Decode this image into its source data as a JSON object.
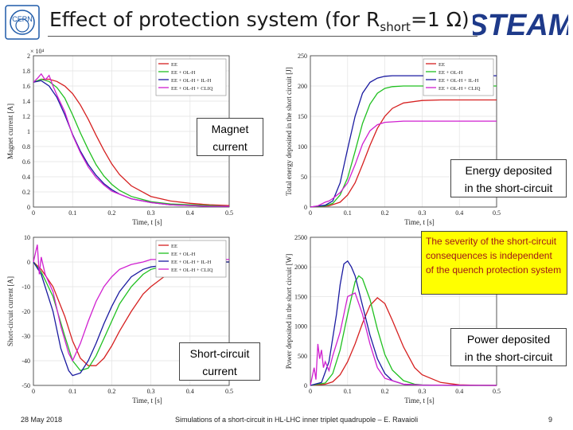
{
  "header": {
    "title_main": "Effect of protection system (for R",
    "title_sub": "short",
    "title_end": "=1 Ω)",
    "logo_left": "CERN",
    "logo_right": "STEAM"
  },
  "annotations": {
    "magnet_current": [
      "Magnet",
      "current"
    ],
    "energy_deposited": [
      "Energy deposited",
      "in the short-circuit"
    ],
    "severity": "The severity of the short-circuit consequences is independent of the quench protection system",
    "short_circuit_current": [
      "Short-circuit",
      "current"
    ],
    "power_deposited": [
      "Power deposited",
      "in the short-circuit"
    ]
  },
  "footer": {
    "date": "28 May 2018",
    "center": "Simulations of a short-circuit in HL-LHC inner triplet quadrupole – E. Ravaioli",
    "page": "9"
  },
  "colors": {
    "EE": "#d62020",
    "EE_OLH": "#20c020",
    "EE_OLH_ILH": "#1a1aa0",
    "EE_OLH_CLIQ": "#d020d0"
  },
  "chart_data": [
    {
      "id": "magnet-current",
      "type": "line",
      "ylabel": "Magnet current [A]",
      "xlabel": "Time, t [s]",
      "multiplier": "× 10⁴",
      "xlim": [
        0,
        0.5
      ],
      "ylim": [
        0,
        2
      ],
      "xticks": [
        "0",
        "0.1",
        "0.2",
        "0.3",
        "0.4",
        "0.5"
      ],
      "yticks": [
        "0",
        "0.2",
        "0.4",
        "0.6",
        "0.8",
        "1",
        "1.2",
        "1.4",
        "1.6",
        "1.8",
        "2"
      ],
      "legend": "top-right",
      "series": [
        {
          "name": "EE",
          "color": "#d62020",
          "x": [
            0,
            0.02,
            0.04,
            0.06,
            0.08,
            0.1,
            0.12,
            0.14,
            0.16,
            0.18,
            0.2,
            0.22,
            0.25,
            0.3,
            0.35,
            0.4,
            0.45,
            0.5
          ],
          "y": [
            1.65,
            1.69,
            1.69,
            1.66,
            1.6,
            1.5,
            1.35,
            1.16,
            0.95,
            0.75,
            0.57,
            0.43,
            0.28,
            0.14,
            0.08,
            0.05,
            0.03,
            0.02
          ]
        },
        {
          "name": "EE + OL-H",
          "color": "#20c020",
          "x": [
            0,
            0.02,
            0.04,
            0.06,
            0.08,
            0.1,
            0.12,
            0.14,
            0.16,
            0.18,
            0.2,
            0.22,
            0.25,
            0.3,
            0.35,
            0.4,
            0.45,
            0.5
          ],
          "y": [
            1.65,
            1.69,
            1.66,
            1.58,
            1.44,
            1.22,
            0.98,
            0.76,
            0.56,
            0.41,
            0.3,
            0.22,
            0.14,
            0.07,
            0.04,
            0.03,
            0.02,
            0.01
          ]
        },
        {
          "name": "EE + OL-H + IL-H",
          "color": "#1a1aa0",
          "x": [
            0,
            0.02,
            0.04,
            0.06,
            0.08,
            0.1,
            0.12,
            0.14,
            0.16,
            0.18,
            0.2,
            0.22,
            0.25,
            0.3,
            0.35,
            0.4,
            0.45,
            0.5
          ],
          "y": [
            1.65,
            1.67,
            1.6,
            1.45,
            1.22,
            0.96,
            0.74,
            0.56,
            0.42,
            0.31,
            0.23,
            0.17,
            0.11,
            0.06,
            0.03,
            0.02,
            0.01,
            0.01
          ]
        },
        {
          "name": "EE + OL-H + CLIQ",
          "color": "#d020d0",
          "x": [
            0,
            0.01,
            0.02,
            0.03,
            0.04,
            0.05,
            0.06,
            0.08,
            0.1,
            0.12,
            0.14,
            0.16,
            0.18,
            0.2,
            0.25,
            0.3,
            0.35,
            0.4,
            0.45,
            0.5
          ],
          "y": [
            1.65,
            1.7,
            1.76,
            1.68,
            1.74,
            1.6,
            1.48,
            1.26,
            0.95,
            0.72,
            0.53,
            0.39,
            0.29,
            0.21,
            0.11,
            0.06,
            0.03,
            0.02,
            0.01,
            0.01
          ]
        }
      ]
    },
    {
      "id": "energy-deposited",
      "type": "line",
      "ylabel": "Total energy deposited in the short circuit [J]",
      "xlabel": "Time, t [s]",
      "xlim": [
        0,
        0.5
      ],
      "ylim": [
        0,
        250
      ],
      "xticks": [
        "0",
        "0.1",
        "0.2",
        "0.3",
        "0.4",
        "0.5"
      ],
      "yticks": [
        "0",
        "50",
        "100",
        "150",
        "200",
        "250"
      ],
      "legend": "top-right",
      "series": [
        {
          "name": "EE",
          "color": "#d62020",
          "x": [
            0,
            0.05,
            0.08,
            0.1,
            0.12,
            0.14,
            0.16,
            0.18,
            0.2,
            0.22,
            0.25,
            0.3,
            0.35,
            0.4,
            0.45,
            0.5
          ],
          "y": [
            0,
            2,
            8,
            20,
            40,
            70,
            102,
            130,
            150,
            163,
            172,
            176,
            177,
            177,
            177,
            177
          ]
        },
        {
          "name": "EE + OL-H",
          "color": "#20c020",
          "x": [
            0,
            0.04,
            0.06,
            0.08,
            0.1,
            0.12,
            0.14,
            0.16,
            0.18,
            0.2,
            0.22,
            0.25,
            0.3,
            0.35,
            0.4,
            0.45,
            0.5
          ],
          "y": [
            0,
            2,
            6,
            20,
            48,
            92,
            138,
            170,
            188,
            196,
            199,
            200,
            200,
            200,
            200,
            200,
            200
          ]
        },
        {
          "name": "EE + OL-H + IL-H",
          "color": "#1a1aa0",
          "x": [
            0,
            0.04,
            0.06,
            0.08,
            0.1,
            0.12,
            0.14,
            0.16,
            0.18,
            0.2,
            0.22,
            0.25,
            0.3,
            0.35,
            0.4,
            0.45,
            0.5
          ],
          "y": [
            0,
            3,
            10,
            40,
            96,
            150,
            188,
            206,
            213,
            216,
            217,
            217,
            217,
            217,
            217,
            217,
            217
          ]
        },
        {
          "name": "EE + OL-H + CLIQ",
          "color": "#d020d0",
          "x": [
            0,
            0.02,
            0.03,
            0.04,
            0.05,
            0.06,
            0.08,
            0.1,
            0.12,
            0.14,
            0.16,
            0.18,
            0.2,
            0.25,
            0.3,
            0.35,
            0.4,
            0.45,
            0.5
          ],
          "y": [
            0,
            2,
            5,
            8,
            10,
            14,
            24,
            40,
            70,
            104,
            126,
            136,
            140,
            142,
            142,
            142,
            142,
            142,
            142
          ]
        }
      ]
    },
    {
      "id": "short-circuit-current",
      "type": "line",
      "ylabel": "Short-circuit current [A]",
      "xlabel": "Time, t [s]",
      "xlim": [
        0,
        0.5
      ],
      "ylim": [
        -50,
        10
      ],
      "xticks": [
        "0",
        "0.1",
        "0.2",
        "0.3",
        "0.4",
        "0.5"
      ],
      "yticks": [
        "-50",
        "-40",
        "-30",
        "-20",
        "-10",
        "0",
        "10"
      ],
      "legend": "top-right",
      "series": [
        {
          "name": "EE",
          "color": "#d62020",
          "x": [
            0,
            0.02,
            0.05,
            0.08,
            0.1,
            0.12,
            0.14,
            0.16,
            0.18,
            0.2,
            0.22,
            0.25,
            0.28,
            0.3,
            0.35,
            0.4,
            0.45,
            0.5
          ],
          "y": [
            0,
            -3,
            -10,
            -22,
            -32,
            -39,
            -42,
            -42,
            -39,
            -34,
            -28,
            -20,
            -13,
            -10,
            -4,
            -1,
            0,
            0
          ]
        },
        {
          "name": "EE + OL-H",
          "color": "#20c020",
          "x": [
            0,
            0.02,
            0.05,
            0.08,
            0.1,
            0.12,
            0.14,
            0.16,
            0.18,
            0.2,
            0.22,
            0.25,
            0.28,
            0.3,
            0.35,
            0.4,
            0.45,
            0.5
          ],
          "y": [
            0,
            -4,
            -14,
            -30,
            -40,
            -44,
            -43,
            -38,
            -31,
            -24,
            -17,
            -10,
            -5,
            -3,
            -1,
            0,
            0,
            0
          ]
        },
        {
          "name": "EE + OL-H + IL-H",
          "color": "#1a1aa0",
          "x": [
            0,
            0.02,
            0.05,
            0.07,
            0.09,
            0.1,
            0.12,
            0.14,
            0.16,
            0.18,
            0.2,
            0.22,
            0.25,
            0.28,
            0.3,
            0.35,
            0.4,
            0.45,
            0.5
          ],
          "y": [
            0,
            -5,
            -20,
            -35,
            -44,
            -46,
            -45,
            -40,
            -33,
            -25,
            -18,
            -12,
            -6,
            -3,
            -2,
            -1,
            0,
            0,
            0
          ]
        },
        {
          "name": "EE + OL-H + CLIQ",
          "color": "#d020d0",
          "x": [
            0,
            0.01,
            0.015,
            0.02,
            0.03,
            0.05,
            0.07,
            0.09,
            0.1,
            0.12,
            0.14,
            0.16,
            0.18,
            0.2,
            0.22,
            0.25,
            0.28,
            0.3,
            0.35,
            0.4,
            0.45,
            0.5
          ],
          "y": [
            0,
            7,
            -5,
            2,
            -5,
            -12,
            -26,
            -37,
            -40,
            -33,
            -24,
            -16,
            -10,
            -6,
            -3,
            -1,
            0,
            1,
            1,
            1,
            1,
            1
          ]
        }
      ]
    },
    {
      "id": "power-deposited",
      "type": "line",
      "ylabel": "Power deposited in the short circuit [W]",
      "xlabel": "Time, t [s]",
      "xlim": [
        0,
        0.5
      ],
      "ylim": [
        0,
        2500
      ],
      "xticks": [
        "0",
        "0.1",
        "0.2",
        "0.3",
        "0.4",
        "0.5"
      ],
      "yticks": [
        "0",
        "500",
        "1000",
        "1500",
        "2000",
        "2500"
      ],
      "legend": "top-right",
      "series": [
        {
          "name": "EE",
          "color": "#d62020",
          "x": [
            0,
            0.04,
            0.06,
            0.08,
            0.1,
            0.12,
            0.14,
            0.16,
            0.18,
            0.2,
            0.22,
            0.25,
            0.28,
            0.3,
            0.35,
            0.4,
            0.45,
            0.5
          ],
          "y": [
            0,
            20,
            60,
            180,
            400,
            700,
            1050,
            1350,
            1480,
            1380,
            1100,
            650,
            300,
            180,
            50,
            10,
            2,
            0
          ]
        },
        {
          "name": "EE + OL-H",
          "color": "#20c020",
          "x": [
            0,
            0.04,
            0.06,
            0.08,
            0.1,
            0.12,
            0.13,
            0.14,
            0.16,
            0.18,
            0.2,
            0.22,
            0.25,
            0.28,
            0.3,
            0.35,
            0.4,
            0.5
          ],
          "y": [
            0,
            40,
            200,
            600,
            1200,
            1750,
            1850,
            1800,
            1450,
            950,
            520,
            260,
            80,
            20,
            8,
            2,
            0,
            0
          ]
        },
        {
          "name": "EE + OL-H + IL-H",
          "color": "#1a1aa0",
          "x": [
            0,
            0.03,
            0.05,
            0.07,
            0.08,
            0.09,
            0.1,
            0.11,
            0.12,
            0.14,
            0.16,
            0.18,
            0.2,
            0.22,
            0.25,
            0.3,
            0.35,
            0.4,
            0.5
          ],
          "y": [
            0,
            50,
            400,
            1200,
            1700,
            2050,
            2100,
            2000,
            1850,
            1350,
            850,
            450,
            200,
            80,
            20,
            5,
            1,
            0,
            0
          ]
        },
        {
          "name": "EE + OL-H + CLIQ",
          "color": "#d020d0",
          "x": [
            0,
            0.01,
            0.015,
            0.02,
            0.025,
            0.03,
            0.035,
            0.04,
            0.05,
            0.06,
            0.08,
            0.1,
            0.12,
            0.14,
            0.16,
            0.18,
            0.2,
            0.25,
            0.3,
            0.5
          ],
          "y": [
            0,
            300,
            100,
            700,
            450,
            600,
            300,
            400,
            250,
            500,
            900,
            1500,
            1560,
            1200,
            700,
            300,
            120,
            20,
            5,
            0
          ]
        }
      ]
    }
  ]
}
